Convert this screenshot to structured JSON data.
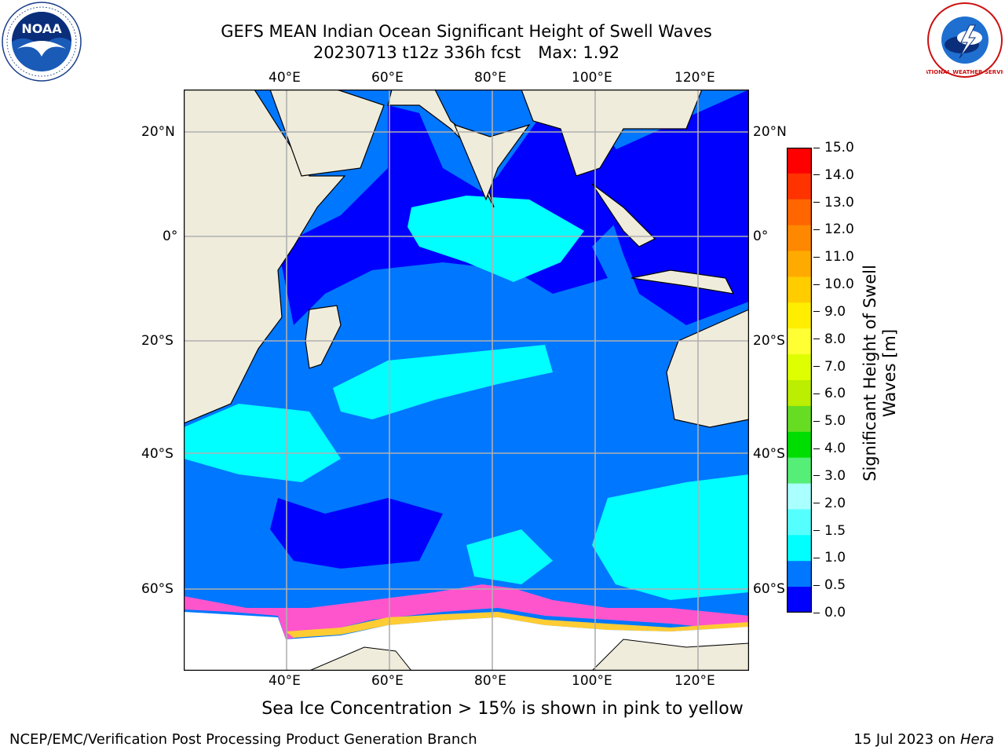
{
  "title": {
    "line1": "GEFS MEAN Indian Ocean Significant Height of Swell Waves",
    "line2": "20230713 t12z 336h fcst",
    "max_text": "Max: 1.92"
  },
  "logos": {
    "left": "NOAA",
    "right": "NATIONAL WEATHER SERVICE"
  },
  "map": {
    "lon_ticks": [
      "40°E",
      "60°E",
      "80°E",
      "100°E",
      "120°E"
    ],
    "lat_ticks": [
      "20°N",
      "0°",
      "20°S",
      "40°S",
      "60°S"
    ],
    "lon_range": [
      20,
      130
    ],
    "lat_range": [
      -73,
      27
    ],
    "gridlines": true
  },
  "colorbar": {
    "label_line1": "Significant Height of Swell",
    "label_line2": "Waves [m]",
    "ticks": [
      "15.0",
      "14.0",
      "13.0",
      "12.0",
      "11.0",
      "10.0",
      "9.0",
      "8.0",
      "7.0",
      "6.0",
      "5.0",
      "4.0",
      "3.0",
      "2.0",
      "1.5",
      "1.0",
      "0.5",
      "0.0"
    ],
    "colors": [
      "#ff0000",
      "#ff3300",
      "#ff6600",
      "#ff8800",
      "#ffaa00",
      "#ffcc00",
      "#ffee00",
      "#ffff33",
      "#ddff00",
      "#bbee00",
      "#66dd22",
      "#00dd00",
      "#55ee77",
      "#aaffff",
      "#55ffff",
      "#00ffff",
      "#0077ff",
      "#0000ff"
    ]
  },
  "colors": {
    "land": "#efecdc",
    "ocean_deep": "#0000ff",
    "ocean_mid": "#0077ff",
    "ocean_light": "#00ffff",
    "ice": "#ff55cc",
    "ice_edge": "#ffcc33",
    "grid": "#b0b0b0"
  },
  "footer": {
    "ice_note": "Sea Ice Concentration > 15% is shown in pink to yellow",
    "left": "NCEP/EMC/Verification Post Processing Product Generation Branch",
    "right_date": "15 Jul 2023 on",
    "right_host": "Hera"
  }
}
